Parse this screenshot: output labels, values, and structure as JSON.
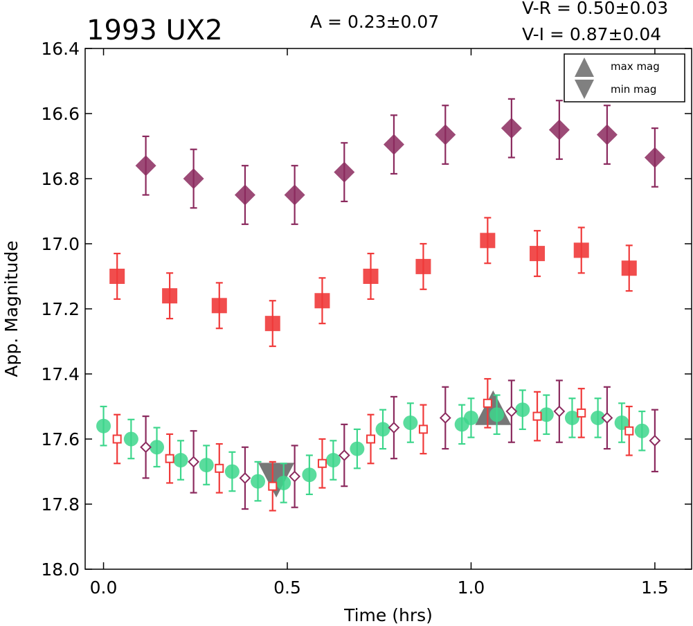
{
  "chart_data": {
    "type": "scatter",
    "title": "1993 UX2",
    "annotations": [
      "A  = 0.23±0.07",
      "V-R = 0.50±0.03",
      "V-I  = 0.87±0.04"
    ],
    "xlabel": "Time (hrs)",
    "ylabel": "App. Magnitude",
    "xlim": [
      -0.05,
      1.6
    ],
    "ylim": [
      18.0,
      16.4
    ],
    "y_inverted": true,
    "x_ticks": [
      "0.0",
      "0.5",
      "1.0",
      "1.5"
    ],
    "y_ticks": [
      "16.4",
      "16.6",
      "16.8",
      "17.0",
      "17.2",
      "17.4",
      "17.6",
      "17.8",
      "18.0"
    ],
    "grid": false,
    "legend": {
      "position": "top-right",
      "entries": [
        {
          "label": "max mag",
          "marker": "triangle-up",
          "color": "#808080"
        },
        {
          "label": "min mag",
          "marker": "triangle-down",
          "color": "#808080"
        }
      ]
    },
    "series": [
      {
        "marker": "diamond-filled",
        "color": "#8b2a5e",
        "error": 0.09,
        "points": [
          [
            0.115,
            16.76
          ],
          [
            0.245,
            16.8
          ],
          [
            0.385,
            16.85
          ],
          [
            0.52,
            16.85
          ],
          [
            0.655,
            16.78
          ],
          [
            0.79,
            16.695
          ],
          [
            0.93,
            16.665
          ],
          [
            1.11,
            16.645
          ],
          [
            1.24,
            16.65
          ],
          [
            1.37,
            16.665
          ],
          [
            1.5,
            16.735
          ]
        ]
      },
      {
        "marker": "square-filled",
        "color": "#f03a3a",
        "error": 0.07,
        "points": [
          [
            0.037,
            17.1
          ],
          [
            0.18,
            17.16
          ],
          [
            0.315,
            17.19
          ],
          [
            0.46,
            17.245
          ],
          [
            0.595,
            17.175
          ],
          [
            0.727,
            17.1
          ],
          [
            0.87,
            17.07
          ],
          [
            1.045,
            16.99
          ],
          [
            1.18,
            17.03
          ],
          [
            1.3,
            17.02
          ],
          [
            1.43,
            17.075
          ]
        ]
      },
      {
        "marker": "circle-filled",
        "color": "#3dd68c",
        "error": 0.06,
        "points": [
          [
            0.0,
            17.56
          ],
          [
            0.075,
            17.6
          ],
          [
            0.145,
            17.625
          ],
          [
            0.21,
            17.665
          ],
          [
            0.28,
            17.68
          ],
          [
            0.35,
            17.7
          ],
          [
            0.42,
            17.73
          ],
          [
            0.49,
            17.735
          ],
          [
            0.56,
            17.71
          ],
          [
            0.625,
            17.665
          ],
          [
            0.69,
            17.63
          ],
          [
            0.76,
            17.57
          ],
          [
            0.835,
            17.55
          ],
          [
            0.975,
            17.555
          ],
          [
            1.0,
            17.535
          ],
          [
            1.07,
            17.525
          ],
          [
            1.14,
            17.51
          ],
          [
            1.205,
            17.525
          ],
          [
            1.275,
            17.535
          ],
          [
            1.345,
            17.535
          ],
          [
            1.41,
            17.55
          ],
          [
            1.465,
            17.575
          ]
        ]
      },
      {
        "marker": "square-open",
        "color": "#f03a3a",
        "error": 0.075,
        "points": [
          [
            0.037,
            17.6
          ],
          [
            0.18,
            17.66
          ],
          [
            0.315,
            17.69
          ],
          [
            0.46,
            17.745
          ],
          [
            0.595,
            17.675
          ],
          [
            0.727,
            17.6
          ],
          [
            0.87,
            17.57
          ],
          [
            1.045,
            17.49
          ],
          [
            1.18,
            17.53
          ],
          [
            1.3,
            17.52
          ],
          [
            1.43,
            17.575
          ]
        ]
      },
      {
        "marker": "diamond-open",
        "color": "#8b2a5e",
        "error": 0.095,
        "points": [
          [
            0.115,
            17.625
          ],
          [
            0.245,
            17.67
          ],
          [
            0.385,
            17.72
          ],
          [
            0.52,
            17.715
          ],
          [
            0.655,
            17.65
          ],
          [
            0.79,
            17.565
          ],
          [
            0.93,
            17.535
          ],
          [
            1.11,
            17.515
          ],
          [
            1.24,
            17.515
          ],
          [
            1.37,
            17.535
          ],
          [
            1.5,
            17.605
          ]
        ]
      }
    ],
    "markers": {
      "max_mag": {
        "x": 1.06,
        "y": 17.51
      },
      "min_mag": {
        "x": 0.47,
        "y": 17.72
      }
    }
  }
}
